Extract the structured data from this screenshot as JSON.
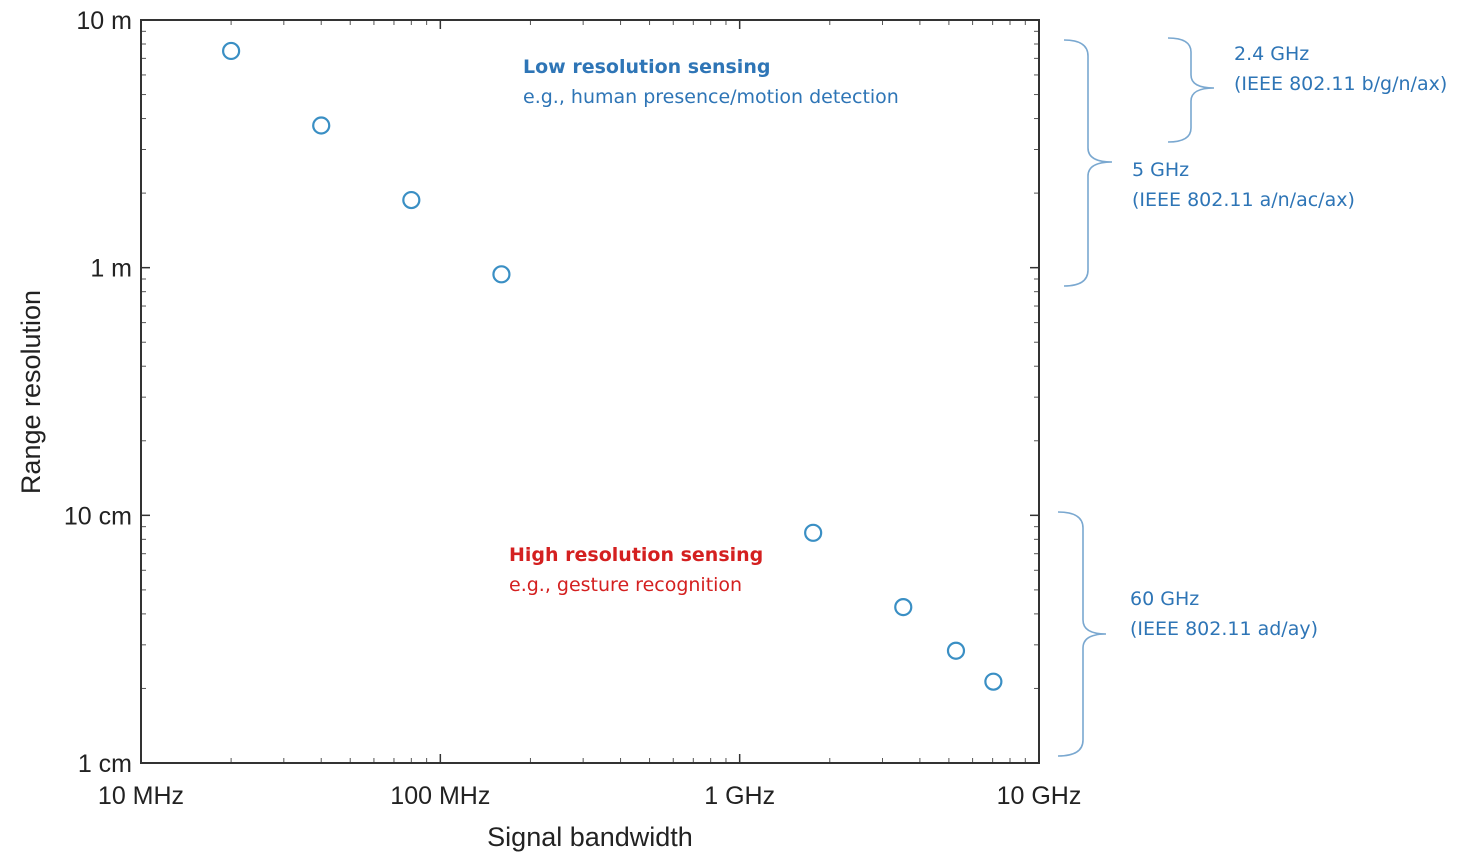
{
  "chart_data": {
    "type": "scatter",
    "title": "",
    "xlabel": "Signal bandwidth",
    "ylabel": "Range resolution",
    "xscale": "log",
    "yscale": "log",
    "xlim": [
      10000000,
      10000000000
    ],
    "ylim": [
      0.01,
      10
    ],
    "grid": false,
    "marker": "open-circle",
    "marker_color": "#3a8fc4",
    "x_ticks": [
      {
        "value": 10000000,
        "label": "10 MHz"
      },
      {
        "value": 100000000,
        "label": "100 MHz"
      },
      {
        "value": 1000000000,
        "label": "1 GHz"
      },
      {
        "value": 10000000000,
        "label": "10 GHz"
      }
    ],
    "y_ticks": [
      {
        "value": 10,
        "label": "10 m"
      },
      {
        "value": 1,
        "label": "1 m"
      },
      {
        "value": 0.1,
        "label": "10 cm"
      },
      {
        "value": 0.01,
        "label": "1 cm"
      }
    ],
    "series": [
      {
        "x": [
          20000000,
          40000000,
          80000000,
          160000000,
          1760000000,
          3520000000,
          5280000000,
          7040000000
        ],
        "y": [
          7.5,
          3.75,
          1.875,
          0.94,
          0.085,
          0.0426,
          0.0284,
          0.0213
        ]
      }
    ],
    "annotations": [
      {
        "id": "low",
        "title": "Low resolution sensing",
        "subtitle": "e.g., human presence/motion detection",
        "color": "#2e75b6"
      },
      {
        "id": "high",
        "title": "High resolution sensing",
        "subtitle": "e.g., gesture recognition",
        "color": "#d42020"
      }
    ],
    "bands": [
      {
        "id": "ghz24",
        "label": "2.4 GHz",
        "standard": "(IEEE 802.11 b/g/n/ax)",
        "color": "#2e75b6"
      },
      {
        "id": "ghz5",
        "label": "5 GHz",
        "standard": "(IEEE 802.11 a/n/ac/ax)",
        "color": "#2e75b6"
      },
      {
        "id": "ghz60",
        "label": "60 GHz",
        "standard": "(IEEE 802.11 ad/ay)",
        "color": "#2e75b6"
      }
    ]
  }
}
